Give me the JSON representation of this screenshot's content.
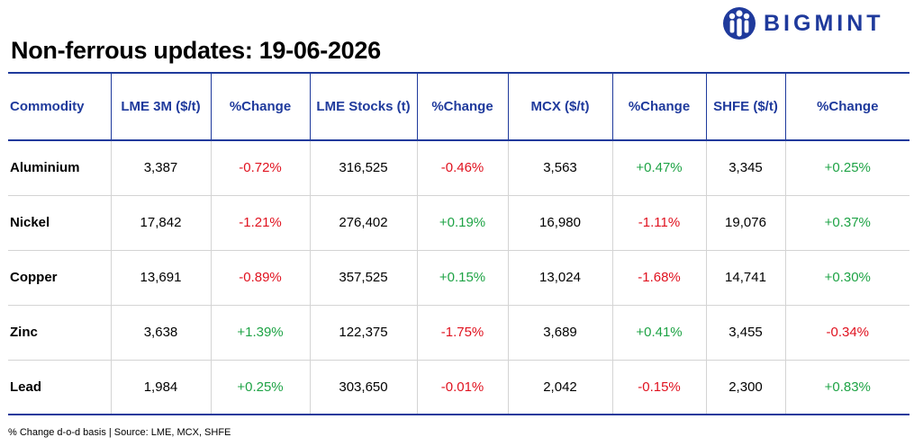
{
  "title": "Non-ferrous updates: 19-06-2026",
  "brand": {
    "name": "BIGMINT",
    "color": "#1f3a9c",
    "icon": "bigmint-people-logo"
  },
  "colors": {
    "header": "#1f3a9c",
    "negative": "#e0121f",
    "positive": "#1ea345"
  },
  "table": {
    "columns": [
      "Commodity",
      "LME 3M ($/t)",
      "%Change",
      "LME Stocks (t)",
      "%Change",
      "MCX ($/t)",
      "%Change",
      "SHFE ($/t)",
      "%Change"
    ],
    "rows": [
      {
        "commodity": "Aluminium",
        "lme3m": "3,387",
        "lme3m_change": "-0.72%",
        "lme_stocks": "316,525",
        "lme_stocks_change": "-0.46%",
        "mcx": "3,563",
        "mcx_change": "+0.47%",
        "shfe": "3,345",
        "shfe_change": "+0.25%"
      },
      {
        "commodity": "Nickel",
        "lme3m": "17,842",
        "lme3m_change": "-1.21%",
        "lme_stocks": "276,402",
        "lme_stocks_change": "+0.19%",
        "mcx": "16,980",
        "mcx_change": "-1.11%",
        "shfe": "19,076",
        "shfe_change": "+0.37%"
      },
      {
        "commodity": "Copper",
        "lme3m": "13,691",
        "lme3m_change": "-0.89%",
        "lme_stocks": "357,525",
        "lme_stocks_change": "+0.15%",
        "mcx": "13,024",
        "mcx_change": "-1.68%",
        "shfe": "14,741",
        "shfe_change": "+0.30%"
      },
      {
        "commodity": "Zinc",
        "lme3m": "3,638",
        "lme3m_change": "+1.39%",
        "lme_stocks": "122,375",
        "lme_stocks_change": "-1.75%",
        "mcx": "3,689",
        "mcx_change": "+0.41%",
        "shfe": "3,455",
        "shfe_change": "-0.34%"
      },
      {
        "commodity": "Lead",
        "lme3m": "1,984",
        "lme3m_change": "+0.25%",
        "lme_stocks": "303,650",
        "lme_stocks_change": "-0.01%",
        "mcx": "2,042",
        "mcx_change": "-0.15%",
        "shfe": "2,300",
        "shfe_change": "+0.83%"
      }
    ]
  },
  "footnote": "% Change d-o-d basis | Source: LME, MCX, SHFE"
}
